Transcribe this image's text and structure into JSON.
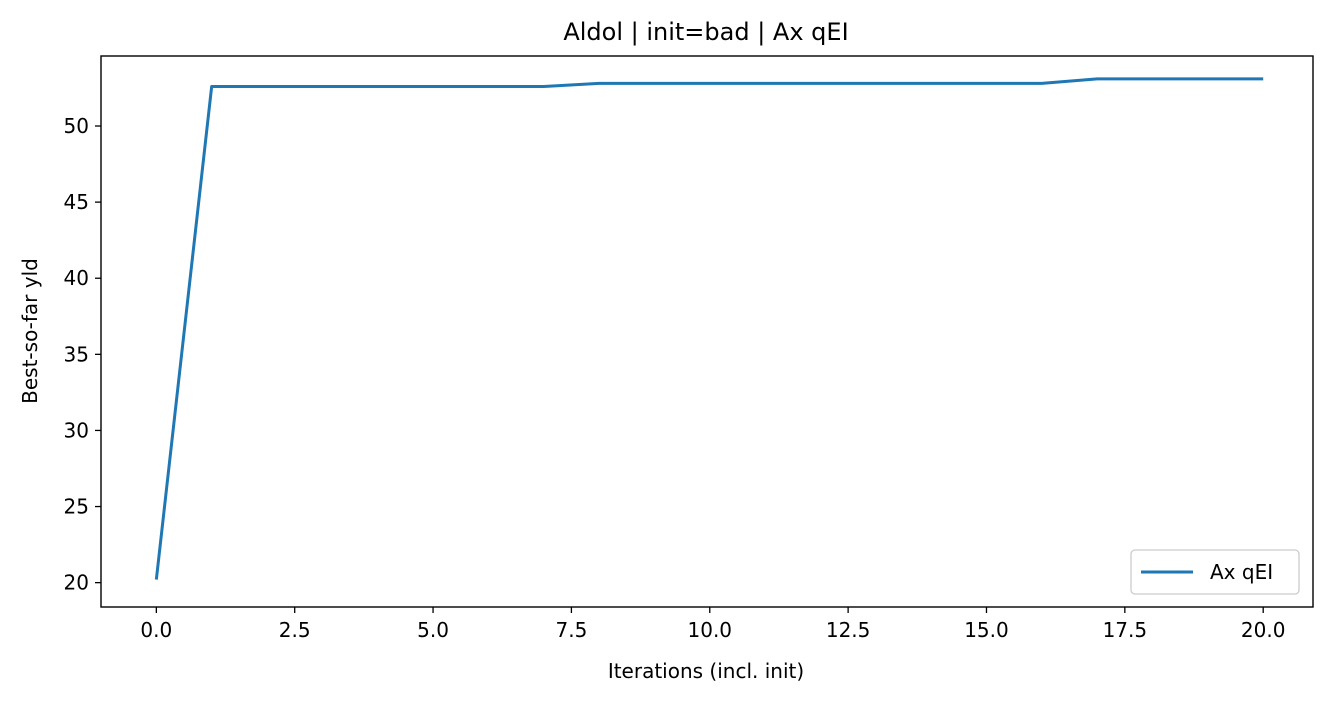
{
  "chart_data": {
    "type": "line",
    "title": "Aldol | init=bad | Ax qEI",
    "xlabel": "Iterations (incl. init)",
    "ylabel": "Best-so-far yld",
    "xlim": [
      -1.0,
      20.9
    ],
    "ylim": [
      18.4,
      54.6
    ],
    "xticks": [
      0.0,
      2.5,
      5.0,
      7.5,
      10.0,
      12.5,
      15.0,
      17.5,
      20.0
    ],
    "xtick_labels": [
      "0.0",
      "2.5",
      "5.0",
      "7.5",
      "10.0",
      "12.5",
      "15.0",
      "17.5",
      "20.0"
    ],
    "yticks": [
      20,
      25,
      30,
      35,
      40,
      45,
      50
    ],
    "ytick_labels": [
      "20",
      "25",
      "30",
      "35",
      "40",
      "45",
      "50"
    ],
    "grid": false,
    "legend_position": "lower-right",
    "series": [
      {
        "name": "Ax qEI",
        "color": "#1f77b4",
        "x": [
          0,
          1,
          2,
          3,
          4,
          5,
          6,
          7,
          8,
          9,
          10,
          11,
          12,
          13,
          14,
          15,
          16,
          17,
          18,
          19,
          20
        ],
        "y": [
          20.2,
          52.6,
          52.6,
          52.6,
          52.6,
          52.6,
          52.6,
          52.6,
          52.8,
          52.8,
          52.8,
          52.8,
          52.8,
          52.8,
          52.8,
          52.8,
          52.8,
          53.1,
          53.1,
          53.1,
          53.1
        ]
      }
    ]
  }
}
